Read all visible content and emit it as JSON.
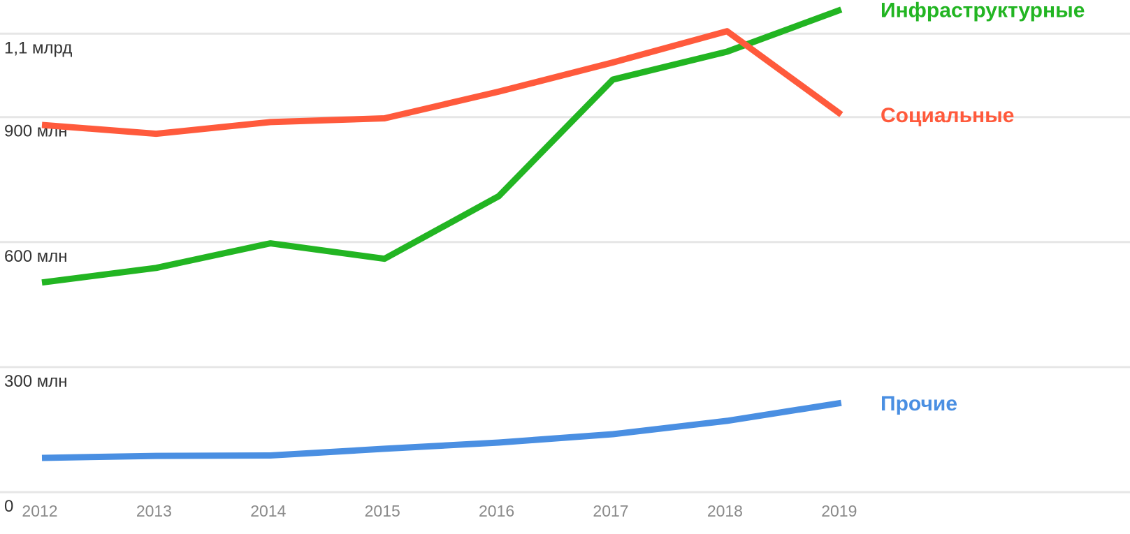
{
  "chart_data": {
    "type": "line",
    "title": "",
    "xlabel": "",
    "ylabel": "",
    "x": [
      "2012",
      "2013",
      "2014",
      "2015",
      "2016",
      "2017",
      "2018",
      "2019"
    ],
    "ylim": [
      0,
      1160000000
    ],
    "yticks": [
      {
        "value": 0,
        "label": "0"
      },
      {
        "value": 300000000,
        "label": "300 млн"
      },
      {
        "value": 600000000,
        "label": "600 млн"
      },
      {
        "value": 900000000,
        "label": "900 млн"
      },
      {
        "value": 1100000000,
        "label": "1,1 млрд"
      }
    ],
    "grid": true,
    "legend": "inline labels at right end of each line",
    "series": [
      {
        "name": "Инфраструктурные",
        "color": "#22b522",
        "values": [
          503000000,
          538000000,
          597000000,
          560000000,
          710000000,
          990000000,
          1057000000,
          1158000000
        ]
      },
      {
        "name": "Социальные",
        "color": "#ff5a3c",
        "values": [
          881000000,
          860000000,
          888000000,
          897000000,
          961000000,
          1031000000,
          1106000000,
          906000000
        ]
      },
      {
        "name": "Прочие",
        "color": "#4a8fe2",
        "values": [
          82000000,
          87000000,
          88000000,
          104000000,
          119000000,
          139000000,
          171000000,
          214000000
        ]
      }
    ]
  }
}
